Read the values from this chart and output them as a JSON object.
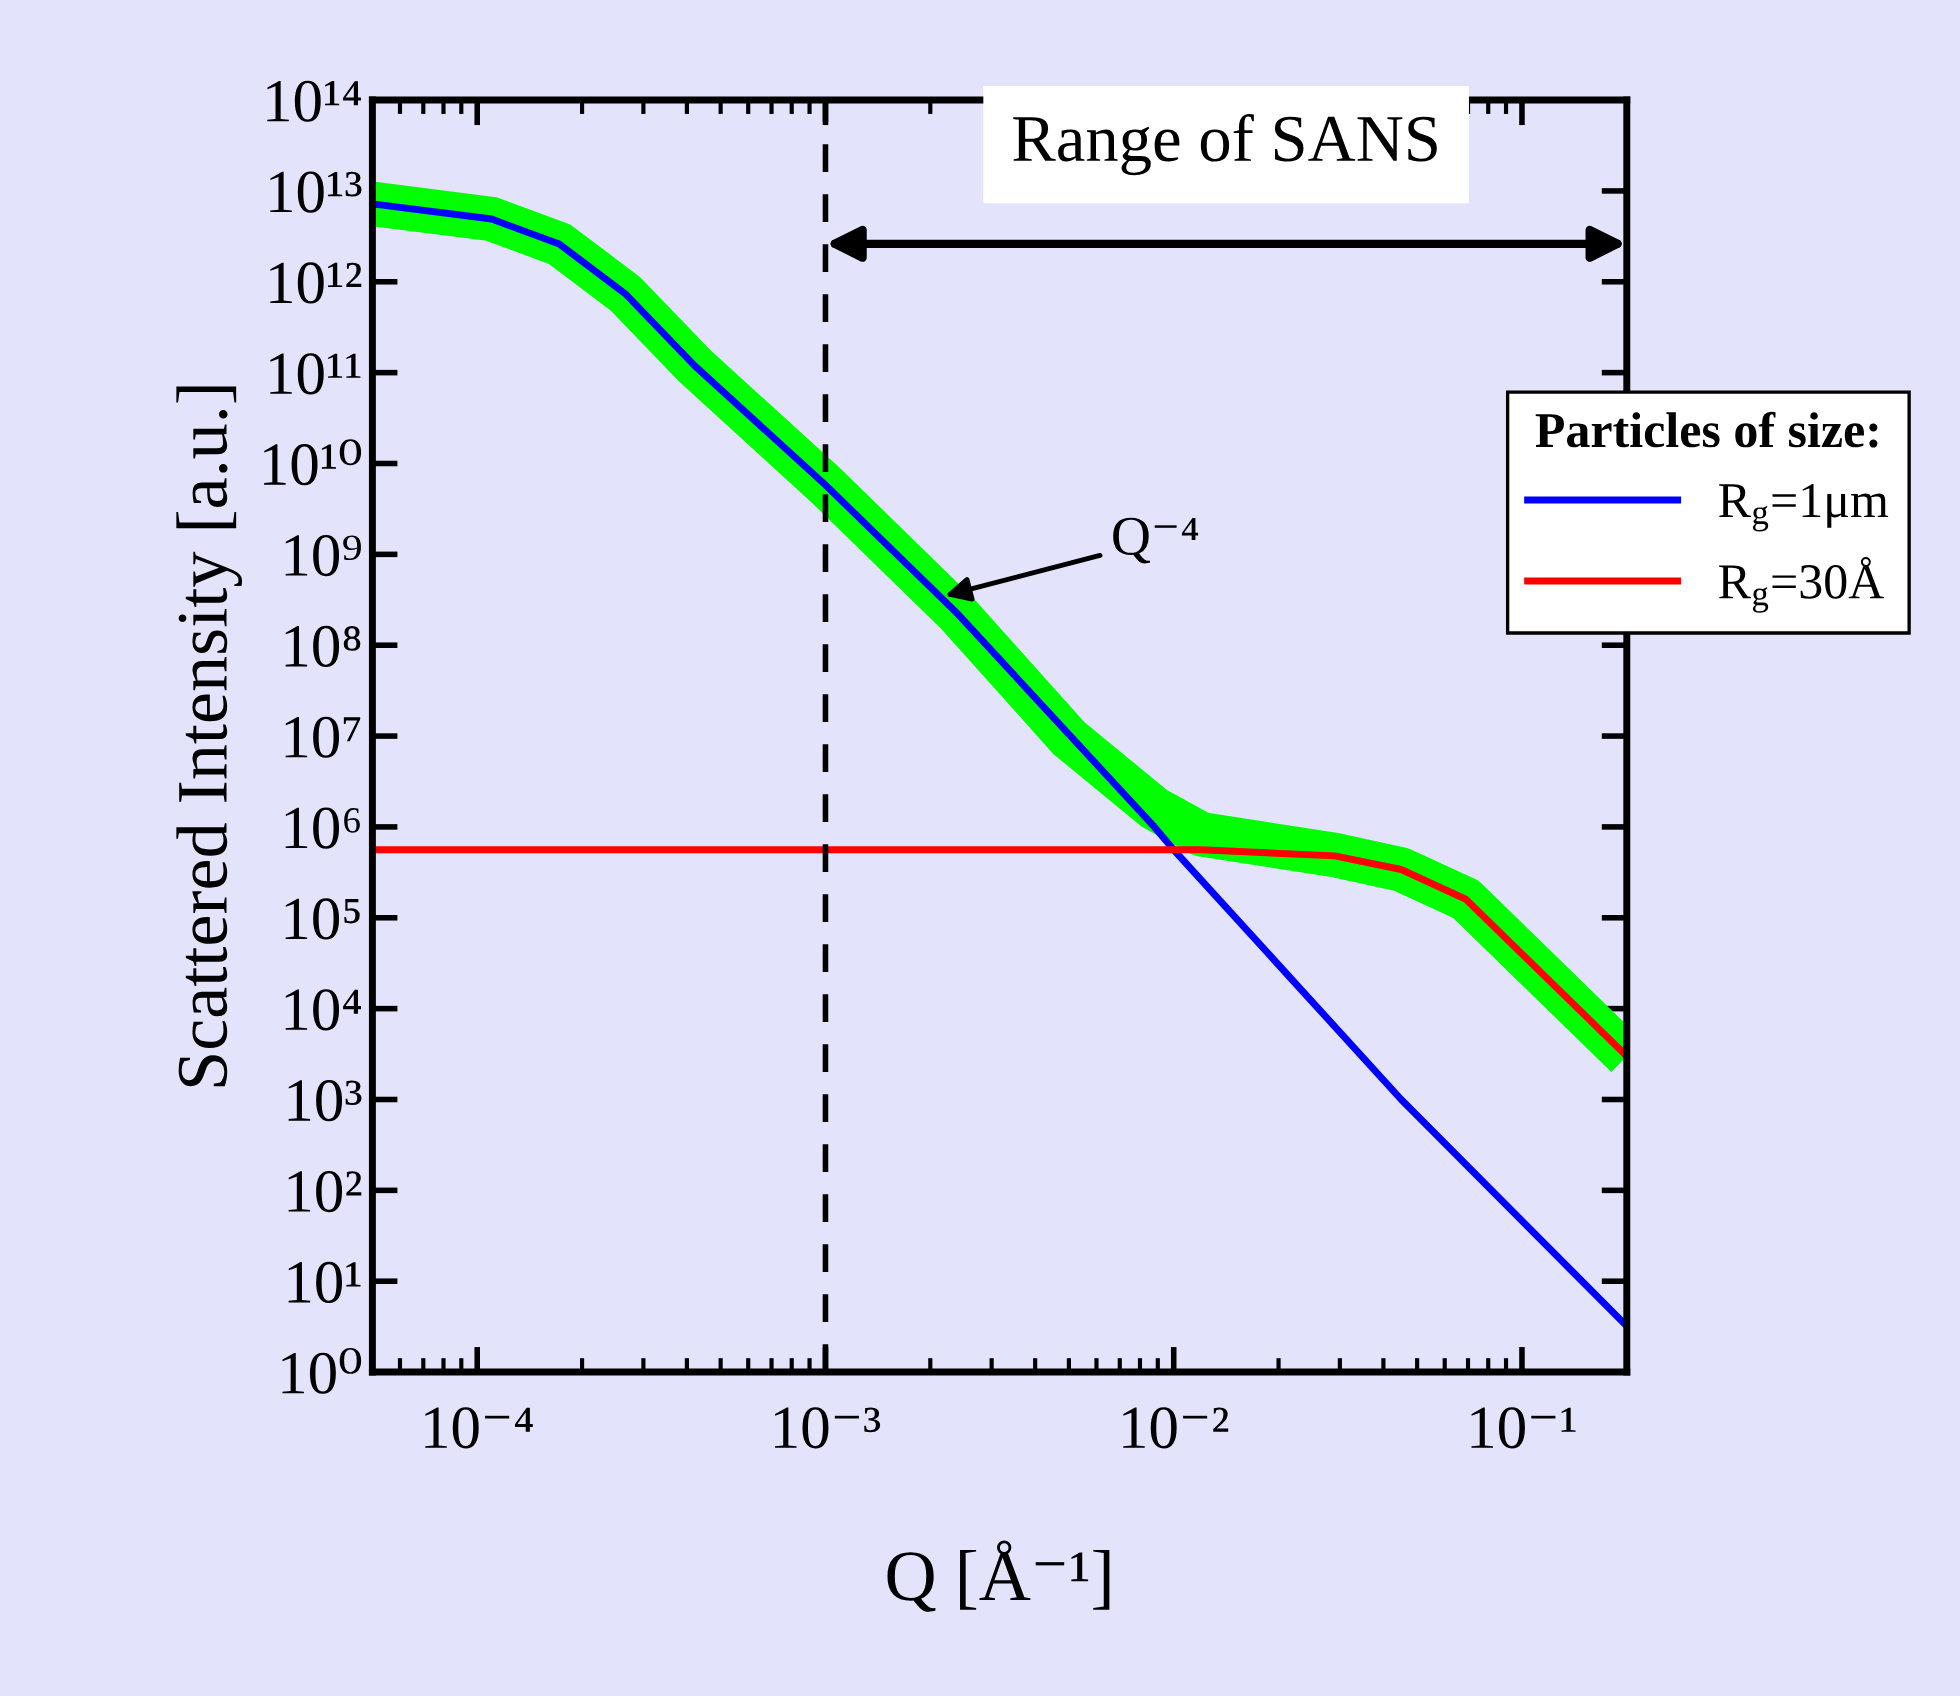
{
  "chart_data": {
    "type": "line",
    "xlabel": "Q [Å⁻¹]",
    "ylabel": "Scattered Intensity [a.u.]",
    "legend_title": "Particles of size:",
    "log": "xy",
    "xlim": [
      5e-05,
      0.2
    ],
    "ylim": [
      1,
      100000000000000.0
    ],
    "xticks": [
      {
        "value": 0.0001,
        "label": "10⁻⁴"
      },
      {
        "value": 0.001,
        "label": "10⁻³"
      },
      {
        "value": 0.01,
        "label": "10⁻²"
      },
      {
        "value": 0.1,
        "label": "10⁻¹"
      }
    ],
    "yticks": [
      {
        "value": 1,
        "label": "10⁰"
      },
      {
        "value": 10,
        "label": "10¹"
      },
      {
        "value": 100,
        "label": "10²"
      },
      {
        "value": 1000,
        "label": "10³"
      },
      {
        "value": 10000,
        "label": "10⁴"
      },
      {
        "value": 100000,
        "label": "10⁵"
      },
      {
        "value": 1000000,
        "label": "10⁶"
      },
      {
        "value": 10000000,
        "label": "10⁷"
      },
      {
        "value": 100000000,
        "label": "10⁸"
      },
      {
        "value": 1000000000,
        "label": "10⁹"
      },
      {
        "value": 10000000000,
        "label": "10¹⁰"
      },
      {
        "value": 100000000000,
        "label": "10¹¹"
      },
      {
        "value": 1000000000000,
        "label": "10¹²"
      },
      {
        "value": 10000000000000,
        "label": "10¹³"
      },
      {
        "value": 100000000000000,
        "label": "10¹⁴"
      }
    ],
    "grid": false,
    "legend": "top right",
    "marker": "none",
    "line_style": "solid",
    "series": [
      {
        "color": "#00ff00",
        "x": [
          5e-05,
          0.00011,
          0.000172,
          0.000266,
          0.00042,
          0.001,
          0.0024,
          0.005,
          0.0088,
          0.012,
          0.029,
          0.045,
          0.069,
          0.108,
          0.2
        ],
        "values": [
          7200000000000.0,
          4900000000000.0,
          2600000000000.0,
          740000000000.0,
          120000000000.0,
          5800000000.0,
          220000000.0,
          9500000.0,
          1600000.0,
          830000.0,
          490000.0,
          340000.0,
          160000.0,
          30000.0,
          3000.0
        ]
      },
      {
        "name": "R$_{g}$=1μm",
        "color": "#0000ff",
        "x": [
          5e-05,
          0.00011,
          0.000172,
          0.000266,
          0.00042,
          0.001,
          0.0024,
          0.0088,
          0.01,
          0.045,
          0.2
        ],
        "values": [
          7200000000000.0,
          4900000000000.0,
          2600000000000.0,
          740000000000.0,
          120000000000.0,
          5800000000.0,
          220000000.0,
          1000000.0,
          560000.0,
          1000.0,
          3.2
        ]
      },
      {
        "name": "R$_{g}$=30Å",
        "color": "#ff0000",
        "x": [
          5e-05,
          0.012,
          0.029,
          0.045,
          0.069,
          0.108,
          0.2
        ],
        "values": [
          560000.0,
          560000.0,
          480000.0,
          340000.0,
          160000.0,
          30000.0,
          3000.0
        ]
      }
    ],
    "ref_lines": [
      {
        "axis": "x",
        "value": 0.001,
        "color": "#000000",
        "line_style": "dashed"
      }
    ],
    "annotations": [
      {
        "text": "Q⁻⁴",
        "x": 0.0022,
        "y": 350000000.0
      },
      "Range of SANS"
    ]
  }
}
